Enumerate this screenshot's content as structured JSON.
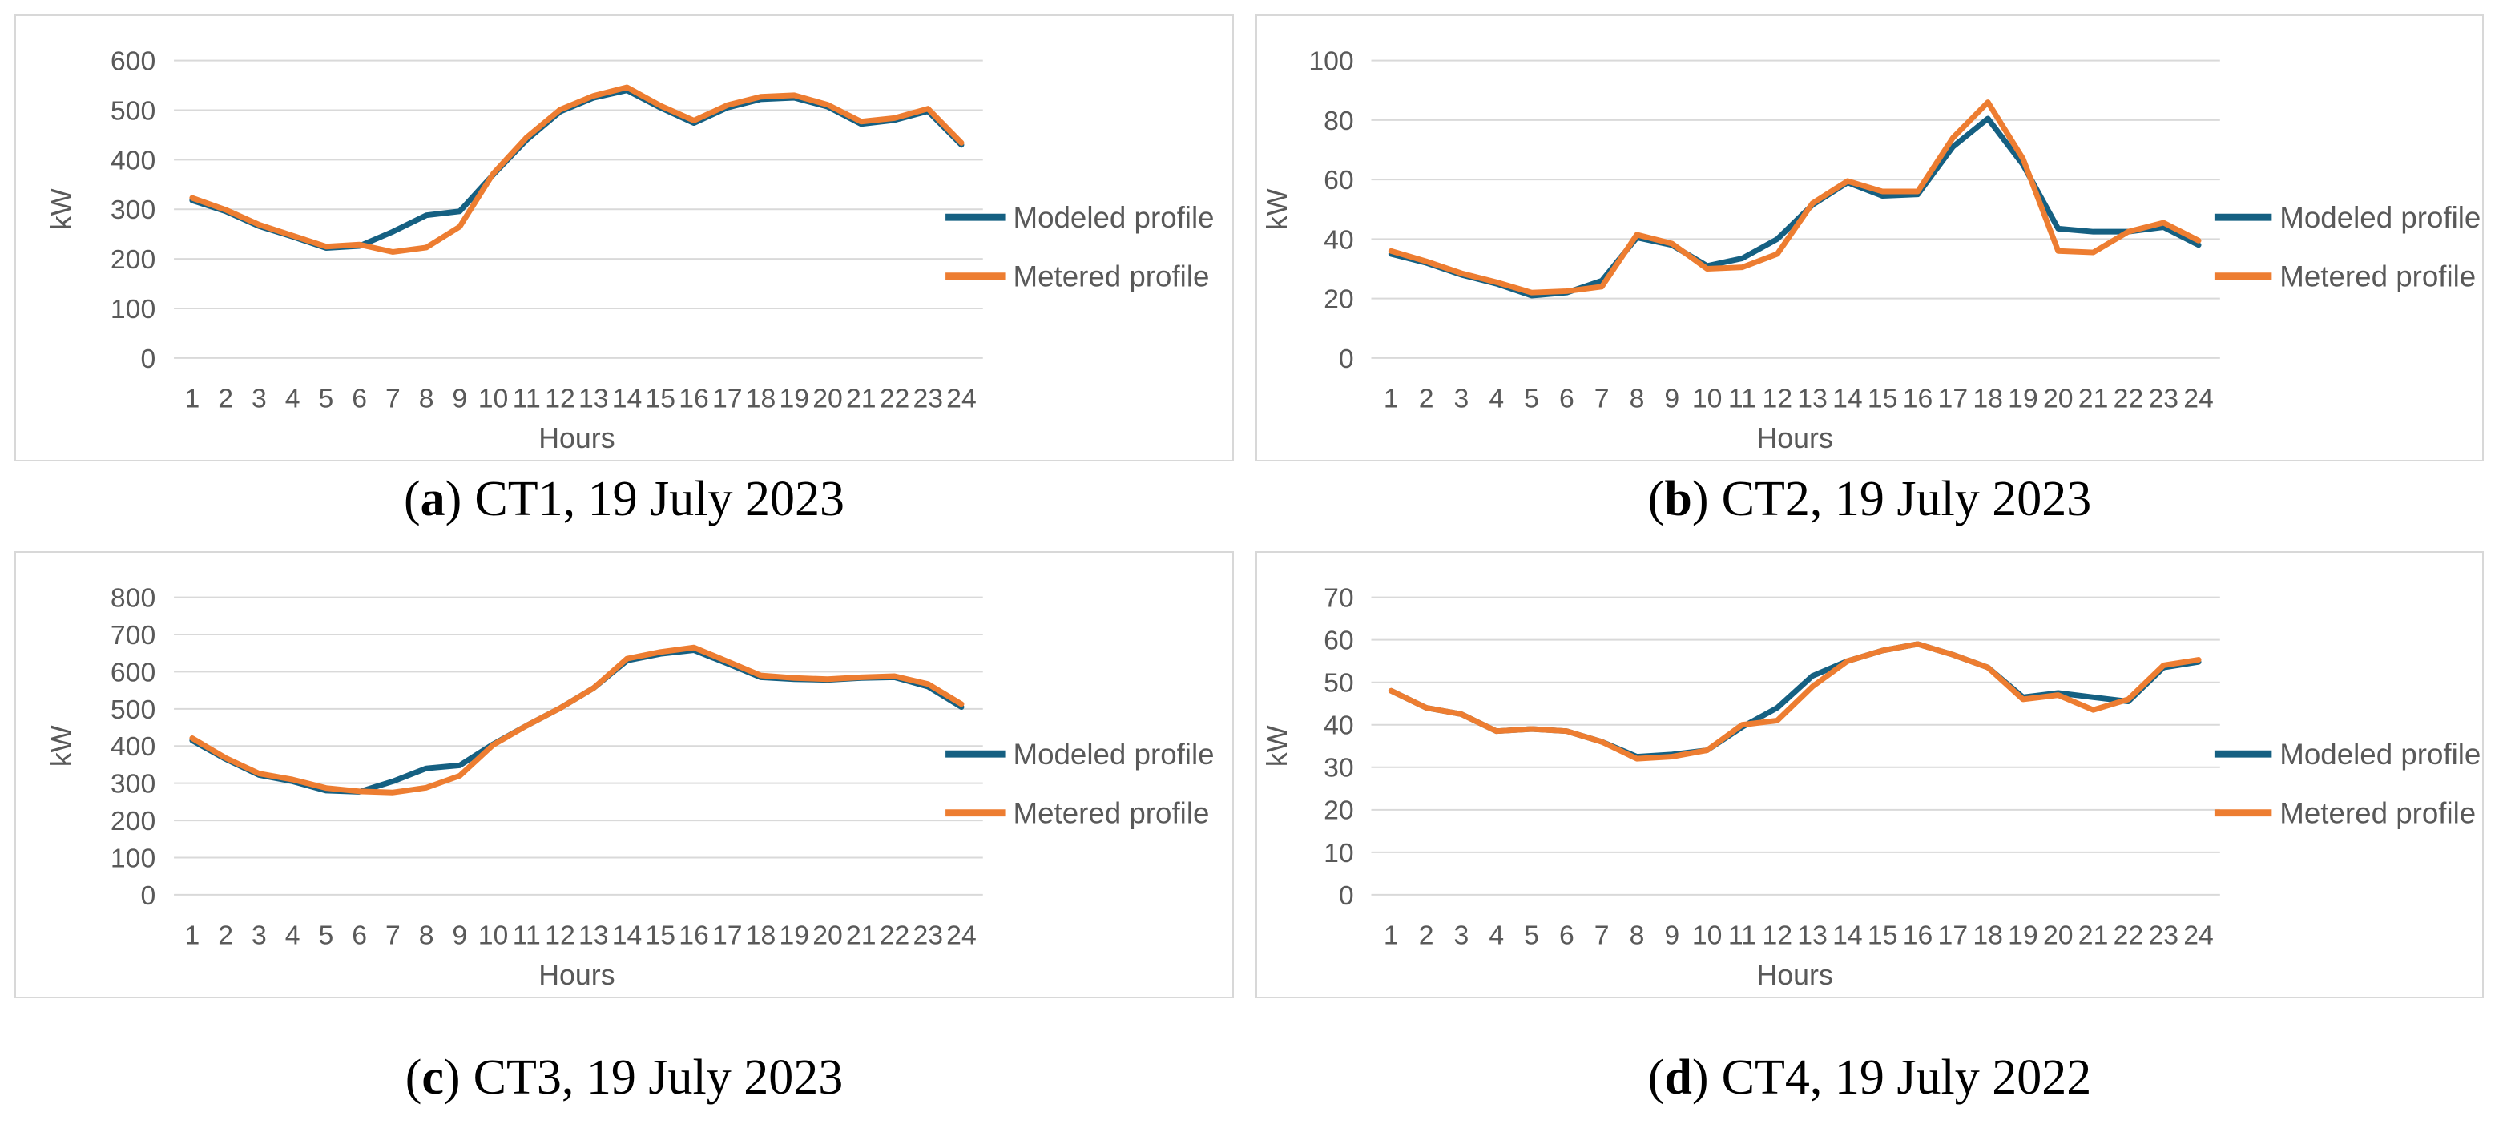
{
  "page": {
    "background": "#ffffff"
  },
  "colors": {
    "modeled_line": "#156082",
    "metered_line": "#ED7D31",
    "axis_text": "#595959",
    "gridline": "#D9D9D9",
    "panel_border": "#D8D8D8",
    "caption_text": "#000000"
  },
  "caption_punctuation": {
    "open": "(",
    "close": ")"
  },
  "legend": {
    "modeled": "Modeled profile",
    "metered": "Metered profile"
  },
  "chart_data": [
    {
      "type": "line",
      "caption_letter": "a",
      "caption_text": "CT1, 19 July 2023",
      "xlabel": "Hours",
      "ylabel": "kW",
      "ylim": [
        0,
        600
      ],
      "y_step": 100,
      "grid": true,
      "legend_position": "right",
      "x": [
        1,
        2,
        3,
        4,
        5,
        6,
        7,
        8,
        9,
        10,
        11,
        12,
        13,
        14,
        15,
        16,
        17,
        18,
        19,
        20,
        21,
        22,
        23,
        24
      ],
      "series": [
        {
          "name": "Modeled profile",
          "values": [
            318,
            296,
            266,
            245,
            222,
            226,
            255,
            288,
            296,
            370,
            440,
            497,
            525,
            540,
            505,
            474,
            505,
            522,
            525,
            507,
            472,
            480,
            498,
            430
          ]
        },
        {
          "name": "Metered profile",
          "values": [
            323,
            299,
            269,
            247,
            225,
            229,
            214,
            223,
            265,
            372,
            445,
            501,
            529,
            546,
            509,
            479,
            510,
            527,
            530,
            511,
            477,
            484,
            503,
            434
          ]
        }
      ]
    },
    {
      "type": "line",
      "caption_letter": "b",
      "caption_text": "CT2, 19 July 2023",
      "xlabel": "Hours",
      "ylabel": "kW",
      "ylim": [
        0,
        100
      ],
      "y_step": 20,
      "grid": true,
      "legend_position": "right",
      "x": [
        1,
        2,
        3,
        4,
        5,
        6,
        7,
        8,
        9,
        10,
        11,
        12,
        13,
        14,
        15,
        16,
        17,
        18,
        19,
        20,
        21,
        22,
        23,
        24
      ],
      "series": [
        {
          "name": "Modeled profile",
          "values": [
            35,
            32,
            28,
            25,
            21,
            22,
            26,
            40.5,
            38,
            31,
            33.5,
            40,
            51.5,
            59,
            54.5,
            55,
            71,
            80.5,
            65,
            43.5,
            42.5,
            42.5,
            44,
            38
          ]
        },
        {
          "name": "Metered profile",
          "values": [
            36,
            32.5,
            28.5,
            25.5,
            22,
            22.5,
            24,
            41.5,
            38.5,
            30,
            30.5,
            35,
            52,
            59.5,
            56,
            56,
            74,
            86,
            67,
            36,
            35.5,
            42.5,
            45.5,
            39.5
          ]
        }
      ]
    },
    {
      "type": "line",
      "caption_letter": "c",
      "caption_text": "CT3, 19 July 2023",
      "xlabel": "Hours",
      "ylabel": "kW",
      "ylim": [
        0,
        800
      ],
      "y_step": 100,
      "grid": true,
      "legend_position": "right",
      "x": [
        1,
        2,
        3,
        4,
        5,
        6,
        7,
        8,
        9,
        10,
        11,
        12,
        13,
        14,
        15,
        16,
        17,
        18,
        19,
        20,
        21,
        22,
        23,
        24
      ],
      "series": [
        {
          "name": "Modeled profile",
          "values": [
            415,
            365,
            322,
            305,
            280,
            277,
            305,
            340,
            348,
            405,
            455,
            502,
            556,
            630,
            648,
            658,
            622,
            585,
            580,
            578,
            583,
            585,
            560,
            505
          ]
        },
        {
          "name": "Metered profile",
          "values": [
            421,
            368,
            326,
            310,
            287,
            278,
            275,
            288,
            320,
            403,
            455,
            502,
            556,
            635,
            653,
            665,
            628,
            590,
            583,
            580,
            585,
            588,
            567,
            513
          ]
        }
      ]
    },
    {
      "type": "line",
      "caption_letter": "d",
      "caption_text": "CT4, 19 July 2022",
      "xlabel": "Hours",
      "ylabel": "kW",
      "ylim": [
        0,
        70
      ],
      "y_step": 10,
      "grid": true,
      "legend_position": "right",
      "x": [
        1,
        2,
        3,
        4,
        5,
        6,
        7,
        8,
        9,
        10,
        11,
        12,
        13,
        14,
        15,
        16,
        17,
        18,
        19,
        20,
        21,
        22,
        23,
        24
      ],
      "series": [
        {
          "name": "Modeled profile",
          "values": [
            48,
            44,
            42.5,
            38.5,
            39,
            38.5,
            36,
            32.5,
            33,
            34,
            39.5,
            44,
            51.5,
            55,
            57.5,
            59,
            56.5,
            53.5,
            46.5,
            47.5,
            46.5,
            45.5,
            53.5,
            54.8
          ]
        },
        {
          "name": "Metered profile",
          "values": [
            48,
            44,
            42.5,
            38.5,
            39,
            38.5,
            36,
            32,
            32.5,
            34,
            40,
            41,
            49,
            55,
            57.5,
            59,
            56.5,
            53.5,
            46,
            47,
            43.5,
            46,
            54,
            55.3
          ]
        }
      ]
    }
  ]
}
